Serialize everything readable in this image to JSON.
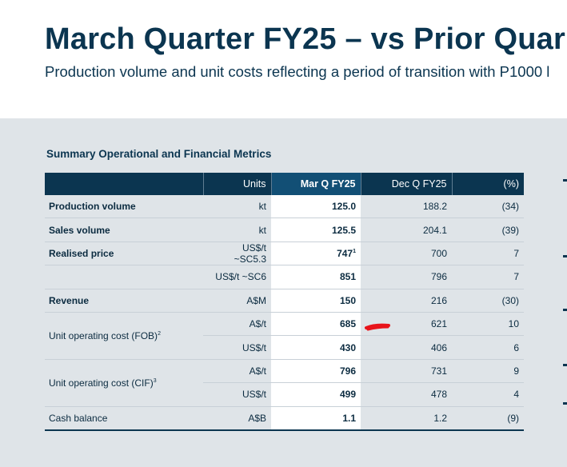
{
  "slide": {
    "title": "March Quarter FY25 – vs Prior Quar",
    "subtitle": "Production volume and unit costs reflecting a period of transition with P1000 l"
  },
  "table": {
    "title": "Summary Operational and Financial Metrics",
    "headers": {
      "metric": "",
      "units": "Units",
      "mar_q": "Mar Q FY25",
      "dec_q": "Dec Q FY25",
      "pct": "(%)"
    },
    "rows": [
      {
        "metric": "Production volume",
        "units": "kt",
        "mar_q": "125.0",
        "dec_q": "188.2",
        "pct": "(34)"
      },
      {
        "metric": "Sales volume",
        "units": "kt",
        "mar_q": "125.5",
        "dec_q": "204.1",
        "pct": "(39)"
      },
      {
        "metric": "Realised price",
        "units": "US$/t ~SC5.3",
        "mar_q": "747",
        "mar_q_sup": "1",
        "dec_q": "700",
        "pct": "7"
      },
      {
        "metric": "",
        "units": "US$/t ~SC6",
        "mar_q": "851",
        "dec_q": "796",
        "pct": "7"
      },
      {
        "metric": "Revenue",
        "units": "A$M",
        "mar_q": "150",
        "dec_q": "216",
        "pct": "(30)"
      },
      {
        "metric": "Unit operating cost (FOB)",
        "metric_sup": "2",
        "units": "A$/t",
        "mar_q": "685",
        "dec_q": "621",
        "pct": "10"
      },
      {
        "metric": "",
        "units": "US$/t",
        "mar_q": "430",
        "dec_q": "406",
        "pct": "6"
      },
      {
        "metric": "Unit operating cost (CIF)",
        "metric_sup": "3",
        "units": "A$/t",
        "mar_q": "796",
        "dec_q": "731",
        "pct": "9"
      },
      {
        "metric": "",
        "units": "US$/t",
        "mar_q": "499",
        "dec_q": "478",
        "pct": "4"
      },
      {
        "metric": "Cash balance",
        "units": "A$B",
        "mar_q": "1.1",
        "dec_q": "1.2",
        "pct": "(9)"
      }
    ]
  },
  "colors": {
    "navy": "#0b3550",
    "highlight_header": "#124f75",
    "panel_bg": "#dfe4e8",
    "annotation_red": "#e8141b"
  }
}
